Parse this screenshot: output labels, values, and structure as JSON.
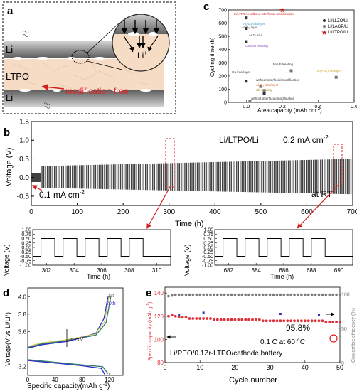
{
  "panels": {
    "a": {
      "letter": "a",
      "li_top": "Li",
      "ltpo": "LTPO",
      "li_bottom": "Li",
      "li_plus": "Li",
      "li_plus_sup": "+",
      "modification": "modification-free"
    },
    "c": {
      "letter": "c",
      "xlabel": "Area capacity (mAh cm",
      "xlabel_sup": "-2",
      "xlabel_end": ")",
      "ylabel": "Cycling time (h)",
      "xticks": [
        "0.0",
        "0.2",
        "0.4",
        "0.6"
      ],
      "yticks": [
        "0",
        "100",
        "200",
        "300",
        "400",
        "500",
        "600",
        "700"
      ],
      "legend": [
        "Li/LLZO/Li",
        "Li/LAGP/Li",
        "Li/LTPO/Li"
      ],
      "annotations": [
        "Li/LTPO/Li without interfacial modification",
        "Ag/Li₃N bilayer",
        "Al₂O₃ layer",
        "ALD-AlN",
        "Carbon treating",
        "NH₄F-treating",
        "Ge interlayer",
        "without interfacial modification",
        "Al₂O₃ interlayer",
        "Sb-coating",
        "without interfacial modification",
        "Li₃PO₄ interlayer"
      ]
    },
    "b": {
      "letter": "b",
      "legend": "Li/LTPO/Li",
      "current_high": "0.2 mA cm",
      "current_low": "0.1 mA cm",
      "current_sup": "-2",
      "at_rt": "at RT",
      "ylabel": "Voltage (V)",
      "xlabel": "Time (h)",
      "xticks": [
        "0",
        "100",
        "200",
        "300",
        "400",
        "500",
        "600",
        "700"
      ],
      "yticks": [
        "-0.5",
        "0.0",
        "0.5",
        "1.0",
        "1.5"
      ],
      "zoom1_xticks": [
        "302",
        "304",
        "306",
        "308",
        "310"
      ],
      "zoom2_xticks": [
        "682",
        "684",
        "686",
        "688",
        "690"
      ],
      "zoom_yticks": [
        "-1.00",
        "-0.75",
        "-0.50",
        "-0.25",
        "0.00",
        "0.25",
        "0.50",
        "0.75",
        "1.00"
      ],
      "zoom_ylabel": "Voltage (V)",
      "zoom_xlabel": "Time (h)"
    },
    "d": {
      "letter": "d",
      "ylabel": "Voltage(V vs Li/Li",
      "ylabel_sup": "+",
      "ylabel_end": ")",
      "xlabel": "Specific capacity(mAh g",
      "xlabel_sup": "-1",
      "xlabel_end": ")",
      "xticks": [
        "0",
        "40",
        "80",
        "120"
      ],
      "yticks": [
        "3.6",
        "3.8",
        "4.0"
      ],
      "ytick_low": "3.2",
      "annotation": "~0.23 V",
      "label_1st": "1st",
      "label_20th": "20th"
    },
    "e": {
      "letter": "e",
      "ylabel_left": "Specific capacity (mAh g",
      "ylabel_left_sup": "-1",
      "ylabel_left_end": ")",
      "ylabel_right": "Coulombic efficiency (%)",
      "xlabel": "Cycle number",
      "xticks": [
        "0",
        "10",
        "20",
        "30",
        "40",
        "50"
      ],
      "yticks_left": [
        "80",
        "100",
        "120",
        "140"
      ],
      "yticks_right": [
        "0",
        "50",
        "100"
      ],
      "retention": "95.8%",
      "condition": "0.1 C at 60 °C",
      "battery": "Li/PEO/0.1Zr-LTPO/cathode battery"
    }
  },
  "colors": {
    "voltage": "#404040",
    "capacity": "#e0303a",
    "efficiency": "#7a7a7a",
    "dashed": "#e02020",
    "d_first": "#2a7a6a",
    "d_20th": "#3030c0",
    "d_mid": "#c8c040"
  },
  "chart_data": [
    {
      "panel": "c",
      "type": "scatter",
      "xlabel": "Area capacity (mAh cm-2)",
      "ylabel": "Cycling time (h)",
      "xlim": [
        -0.1,
        0.6
      ],
      "ylim": [
        0,
        700
      ],
      "series": [
        {
          "name": "Li/LLZO/Li",
          "points": [
            [
              0.0,
              640
            ],
            [
              0.0,
              560
            ],
            [
              0.0,
              460
            ],
            [
              0.0,
              160
            ],
            [
              0.1,
              70
            ]
          ]
        },
        {
          "name": "Li/LAGP/Li",
          "points": [
            [
              0.25,
              240
            ],
            [
              0.08,
              120
            ],
            [
              0.1,
              90
            ],
            [
              0.02,
              10
            ],
            [
              0.5,
              190
            ]
          ]
        },
        {
          "name": "Li/LTPO/Li",
          "points": [
            [
              0.2,
              700
            ]
          ]
        }
      ]
    },
    {
      "panel": "b",
      "type": "line",
      "title": "Li/LTPO/Li",
      "xlabel": "Time (h)",
      "ylabel": "Voltage (V)",
      "xlim": [
        0,
        700
      ],
      "ylim": [
        -0.75,
        1.5
      ],
      "amplitude_start": 0.3,
      "amplitude_end": 0.5,
      "current_step_at_h": 20
    },
    {
      "panel": "b-zoom-1",
      "type": "line",
      "xlim": [
        301,
        311
      ],
      "ylim": [
        -1.0,
        1.0
      ],
      "amplitude": 0.5,
      "period_h": 2,
      "cycles": 5
    },
    {
      "panel": "b-zoom-2",
      "type": "line",
      "xlim": [
        681,
        691
      ],
      "ylim": [
        -1.0,
        1.0
      ],
      "amplitude": 0.5,
      "period_h": 2,
      "cycles": 5
    },
    {
      "panel": "d",
      "type": "line",
      "xlabel": "Specific capacity(mAh g-1)",
      "ylabel": "Voltage(V vs Li/Li+)",
      "xlim": [
        0,
        140
      ],
      "ylim": [
        3.1,
        4.1
      ],
      "series": [
        {
          "name": "1st",
          "charge": [
            [
              0,
              3.42
            ],
            [
              20,
              3.46
            ],
            [
              60,
              3.5
            ],
            [
              100,
              3.56
            ],
            [
              115,
              3.7
            ],
            [
              122,
              4.0
            ]
          ],
          "discharge": [
            [
              0,
              3.28
            ],
            [
              40,
              3.25
            ],
            [
              80,
              3.22
            ],
            [
              110,
              3.2
            ],
            [
              118,
              3.12
            ]
          ]
        },
        {
          "name": "20th",
          "charge": [
            [
              0,
              3.41
            ],
            [
              20,
              3.45
            ],
            [
              60,
              3.49
            ],
            [
              100,
              3.58
            ],
            [
              112,
              3.75
            ],
            [
              118,
              4.0
            ]
          ],
          "discharge": [
            [
              0,
              3.27
            ],
            [
              40,
              3.24
            ],
            [
              80,
              3.21
            ],
            [
              108,
              3.18
            ],
            [
              114,
              3.1
            ]
          ]
        }
      ]
    },
    {
      "panel": "e",
      "type": "scatter",
      "xlabel": "Cycle number",
      "xlim": [
        0,
        50
      ],
      "ylim_left": [
        80,
        145
      ],
      "ylim_right": [
        0,
        110
      ],
      "series": [
        {
          "name": "Specific capacity",
          "axis": "left",
          "values": [
            120,
            121,
            120,
            119,
            119,
            119,
            118,
            118,
            118,
            118,
            118,
            118,
            118,
            117,
            117,
            117,
            117,
            117,
            117,
            117,
            117,
            117,
            117,
            117,
            117,
            117,
            117,
            116,
            116,
            116,
            116,
            116,
            116,
            116,
            116,
            116,
            116,
            116,
            116,
            116,
            116,
            116,
            116,
            116,
            116,
            115,
            115,
            115,
            115,
            115
          ]
        },
        {
          "name": "Coulombic efficiency",
          "axis": "right",
          "values": [
            97,
            98,
            99,
            99,
            99,
            99,
            99,
            99,
            99,
            99,
            99,
            99,
            99,
            99,
            99,
            99,
            99,
            99,
            99,
            99,
            99,
            99,
            99,
            99,
            99,
            99,
            99,
            99,
            99,
            99,
            99,
            99,
            99,
            99,
            99,
            99,
            99,
            99,
            99,
            99,
            99,
            99,
            99,
            99,
            99,
            99,
            99,
            99,
            99,
            99
          ]
        }
      ]
    }
  ]
}
